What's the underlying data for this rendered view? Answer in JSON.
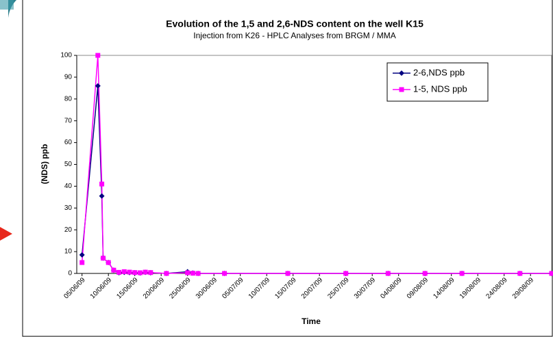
{
  "chart_data": {
    "type": "line",
    "title": "Evolution of the 1,5 and 2,6-NDS content on the well K15",
    "subtitle": "Injection from K26 - HPLC Analyses from BRGM / MMA",
    "y_label": "(NDS) ppb",
    "x_label": "Time",
    "x": [
      "2009-06-05",
      "2009-06-08",
      "2009-06-08T18:00:00Z",
      "2009-06-09",
      "2009-06-10",
      "2009-06-11",
      "2009-06-12",
      "2009-06-13",
      "2009-06-14",
      "2009-06-15",
      "2009-06-16",
      "2009-06-17",
      "2009-06-18",
      "2009-06-21",
      "2009-06-25",
      "2009-06-26",
      "2009-06-27",
      "2009-07-02",
      "2009-07-14",
      "2009-07-25",
      "2009-08-02",
      "2009-08-09",
      "2009-08-16",
      "2009-08-27",
      "2009-09-02"
    ],
    "series": [
      {
        "name": "2-6,NDS ppb",
        "color": "#000080",
        "marker": "diamond",
        "values": [
          8.5,
          86,
          35.5,
          7,
          5,
          1.5,
          0.3,
          0.5,
          0.4,
          0.3,
          0.2,
          0.5,
          0.3,
          0,
          0.8,
          0.2,
          0,
          0,
          0,
          0,
          0,
          0,
          0,
          0,
          0
        ]
      },
      {
        "name": "1-5, NDS  ppb",
        "color": "#ff00ff",
        "marker": "square",
        "values": [
          5,
          100,
          41,
          7,
          5,
          1.5,
          0.5,
          0.8,
          0.6,
          0.4,
          0.3,
          0.6,
          0.4,
          0,
          0.3,
          0.1,
          0,
          0,
          0,
          0,
          0,
          0,
          0,
          0,
          0
        ]
      }
    ],
    "xlim": [
      "2009-06-04",
      "2009-09-02"
    ],
    "xticks": [
      {
        "value": "2009-06-05",
        "label": "05/06/09"
      },
      {
        "value": "2009-06-10",
        "label": "10/06/09"
      },
      {
        "value": "2009-06-15",
        "label": "15/06/09"
      },
      {
        "value": "2009-06-20",
        "label": "20/06/09"
      },
      {
        "value": "2009-06-25",
        "label": "25/06/09"
      },
      {
        "value": "2009-06-30",
        "label": "30/06/09"
      },
      {
        "value": "2009-07-05",
        "label": "05/07/09"
      },
      {
        "value": "2009-07-10",
        "label": "10/07/09"
      },
      {
        "value": "2009-07-15",
        "label": "15/07/09"
      },
      {
        "value": "2009-07-20",
        "label": "20/07/09"
      },
      {
        "value": "2009-07-25",
        "label": "25/07/09"
      },
      {
        "value": "2009-07-30",
        "label": "30/07/09"
      },
      {
        "value": "2009-08-04",
        "label": "04/08/09"
      },
      {
        "value": "2009-08-09",
        "label": "09/08/09"
      },
      {
        "value": "2009-08-14",
        "label": "14/08/09"
      },
      {
        "value": "2009-08-19",
        "label": "19/08/09"
      },
      {
        "value": "2009-08-24",
        "label": "24/08/09"
      },
      {
        "value": "2009-08-29",
        "label": "29/08/09"
      }
    ],
    "ylim": [
      0,
      100
    ],
    "yticks": [
      0,
      10,
      20,
      30,
      40,
      50,
      60,
      70,
      80,
      90,
      100
    ],
    "grid": false,
    "legend": "top-right"
  }
}
